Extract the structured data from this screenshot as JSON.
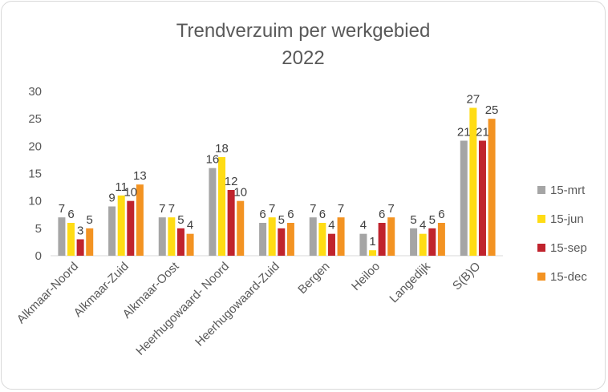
{
  "chart_data": {
    "type": "bar",
    "title": "Trendverzuim per werkgebied",
    "subtitle": "2022",
    "xlabel": "",
    "ylabel": "",
    "ylim": [
      0,
      30
    ],
    "yticks": [
      0,
      5,
      10,
      15,
      20,
      25,
      30
    ],
    "grid": false,
    "legend_position": "right",
    "categories": [
      "Alkmaar-Noord",
      "Alkmaar-Zuid",
      "Alkmaar-Oost",
      "Heerhugowaard- Noord",
      "Heerhugowaard-Zuid",
      "Bergen",
      "Heiloo",
      "Langedijk",
      "S(B)O"
    ],
    "series": [
      {
        "name": "15-mrt",
        "color": "#a5a5a5",
        "values": [
          7,
          9,
          7,
          16,
          6,
          7,
          4,
          5,
          21
        ]
      },
      {
        "name": "15-jun",
        "color": "#ffdc14",
        "values": [
          6,
          11,
          7,
          18,
          7,
          6,
          1,
          4,
          27
        ]
      },
      {
        "name": "15-sep",
        "color": "#c0232d",
        "values": [
          3,
          10,
          5,
          12,
          5,
          4,
          6,
          5,
          21
        ]
      },
      {
        "name": "15-dec",
        "color": "#f39322",
        "values": [
          5,
          13,
          4,
          10,
          6,
          7,
          7,
          6,
          25
        ]
      }
    ]
  }
}
